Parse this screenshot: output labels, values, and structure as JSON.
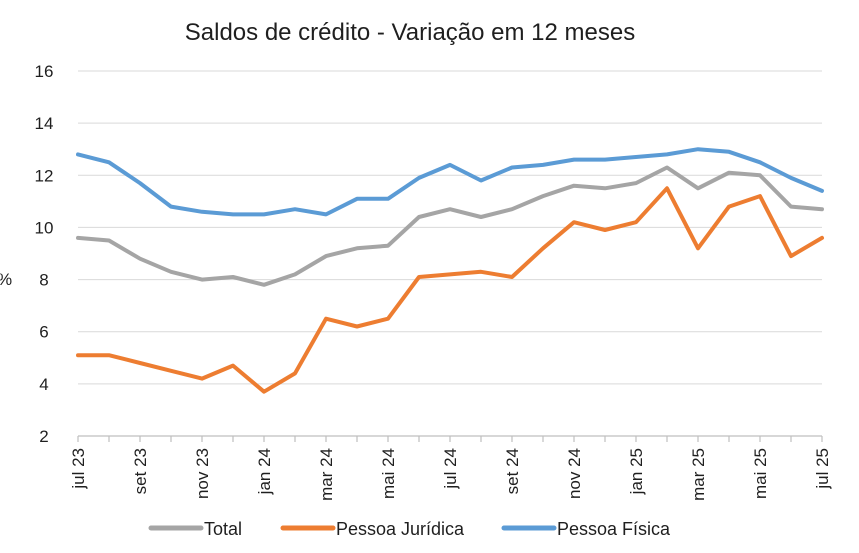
{
  "chart_data": {
    "type": "line",
    "title": "Saldos de crédito - Variação em 12 meses",
    "ylabel": "%",
    "ylim": [
      2,
      16
    ],
    "yticks": [
      2,
      4,
      6,
      8,
      10,
      12,
      14,
      16
    ],
    "grid": true,
    "legend_position": "bottom",
    "x_count": 25,
    "x_labels": [
      {
        "index": 0,
        "label": "jul 23"
      },
      {
        "index": 2,
        "label": "set 23"
      },
      {
        "index": 4,
        "label": "nov 23"
      },
      {
        "index": 6,
        "label": "jan 24"
      },
      {
        "index": 8,
        "label": "mar 24"
      },
      {
        "index": 10,
        "label": "mai 24"
      },
      {
        "index": 12,
        "label": "jul 24"
      },
      {
        "index": 14,
        "label": "set 24"
      },
      {
        "index": 16,
        "label": "nov 24"
      },
      {
        "index": 18,
        "label": "jan 25"
      },
      {
        "index": 20,
        "label": "mar 25"
      },
      {
        "index": 22,
        "label": "mai 25"
      },
      {
        "index": 24,
        "label": "jul 25"
      }
    ],
    "series": [
      {
        "name": "Total",
        "color": "#a5a5a5",
        "values": [
          9.6,
          9.5,
          8.8,
          8.3,
          8.0,
          8.1,
          7.8,
          8.2,
          8.9,
          9.2,
          9.3,
          10.4,
          10.7,
          10.4,
          10.7,
          11.2,
          11.6,
          11.5,
          11.7,
          12.3,
          11.5,
          12.1,
          12.0,
          10.8,
          10.7
        ]
      },
      {
        "name": "Pessoa Jurídica",
        "color": "#ed7d31",
        "values": [
          5.1,
          5.1,
          4.8,
          4.5,
          4.2,
          4.7,
          3.7,
          4.4,
          6.5,
          6.2,
          6.5,
          8.1,
          8.2,
          8.3,
          8.1,
          9.2,
          10.2,
          9.9,
          10.2,
          11.5,
          9.2,
          10.8,
          11.2,
          8.9,
          9.6
        ]
      },
      {
        "name": "Pessoa Física",
        "color": "#5b9bd5",
        "values": [
          12.8,
          12.5,
          11.7,
          10.8,
          10.6,
          10.5,
          10.5,
          10.7,
          10.5,
          11.1,
          11.1,
          11.9,
          12.4,
          11.8,
          12.3,
          12.4,
          12.6,
          12.6,
          12.7,
          12.8,
          13.0,
          12.9,
          12.5,
          11.9,
          11.4
        ]
      }
    ]
  }
}
